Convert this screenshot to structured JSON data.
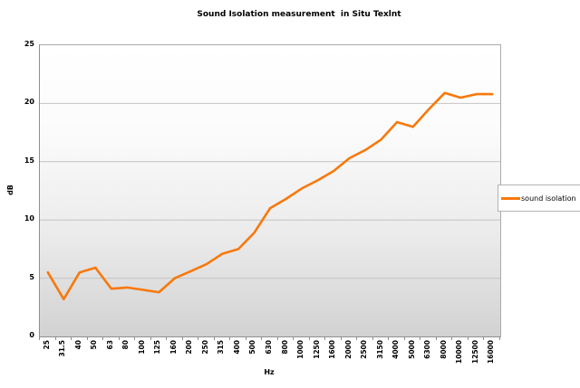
{
  "chart_data": {
    "type": "line",
    "title": "Sound Isolation measurement  in Situ Texlnt",
    "xlabel": "Hz",
    "ylabel": "dB",
    "ylim": [
      0,
      25
    ],
    "ytick_step": 5,
    "grid": true,
    "legend_position": "right",
    "categories": [
      "25",
      "31.5",
      "40",
      "50",
      "63",
      "80",
      "100",
      "125",
      "160",
      "200",
      "250",
      "315",
      "400",
      "500",
      "630",
      "800",
      "1000",
      "1250",
      "1600",
      "2000",
      "2500",
      "3150",
      "4000",
      "5000",
      "6300",
      "8000",
      "10000",
      "12500",
      "16000"
    ],
    "series": [
      {
        "name": "sound isolation",
        "color": "#f8780b",
        "values": [
          5.5,
          3.2,
          5.5,
          5.9,
          4.1,
          4.2,
          4.0,
          3.8,
          5.0,
          5.6,
          6.2,
          7.1,
          7.5,
          8.9,
          11.0,
          11.8,
          12.7,
          13.4,
          14.2,
          15.3,
          16.0,
          16.9,
          18.4,
          18.0,
          19.5,
          20.9,
          20.5,
          20.8,
          20.8
        ]
      }
    ]
  },
  "colors": {
    "accent": "#f8780b",
    "axis": "#8f8f8f",
    "grid": "#c4c4c4",
    "tick": "#8f8f8f"
  }
}
